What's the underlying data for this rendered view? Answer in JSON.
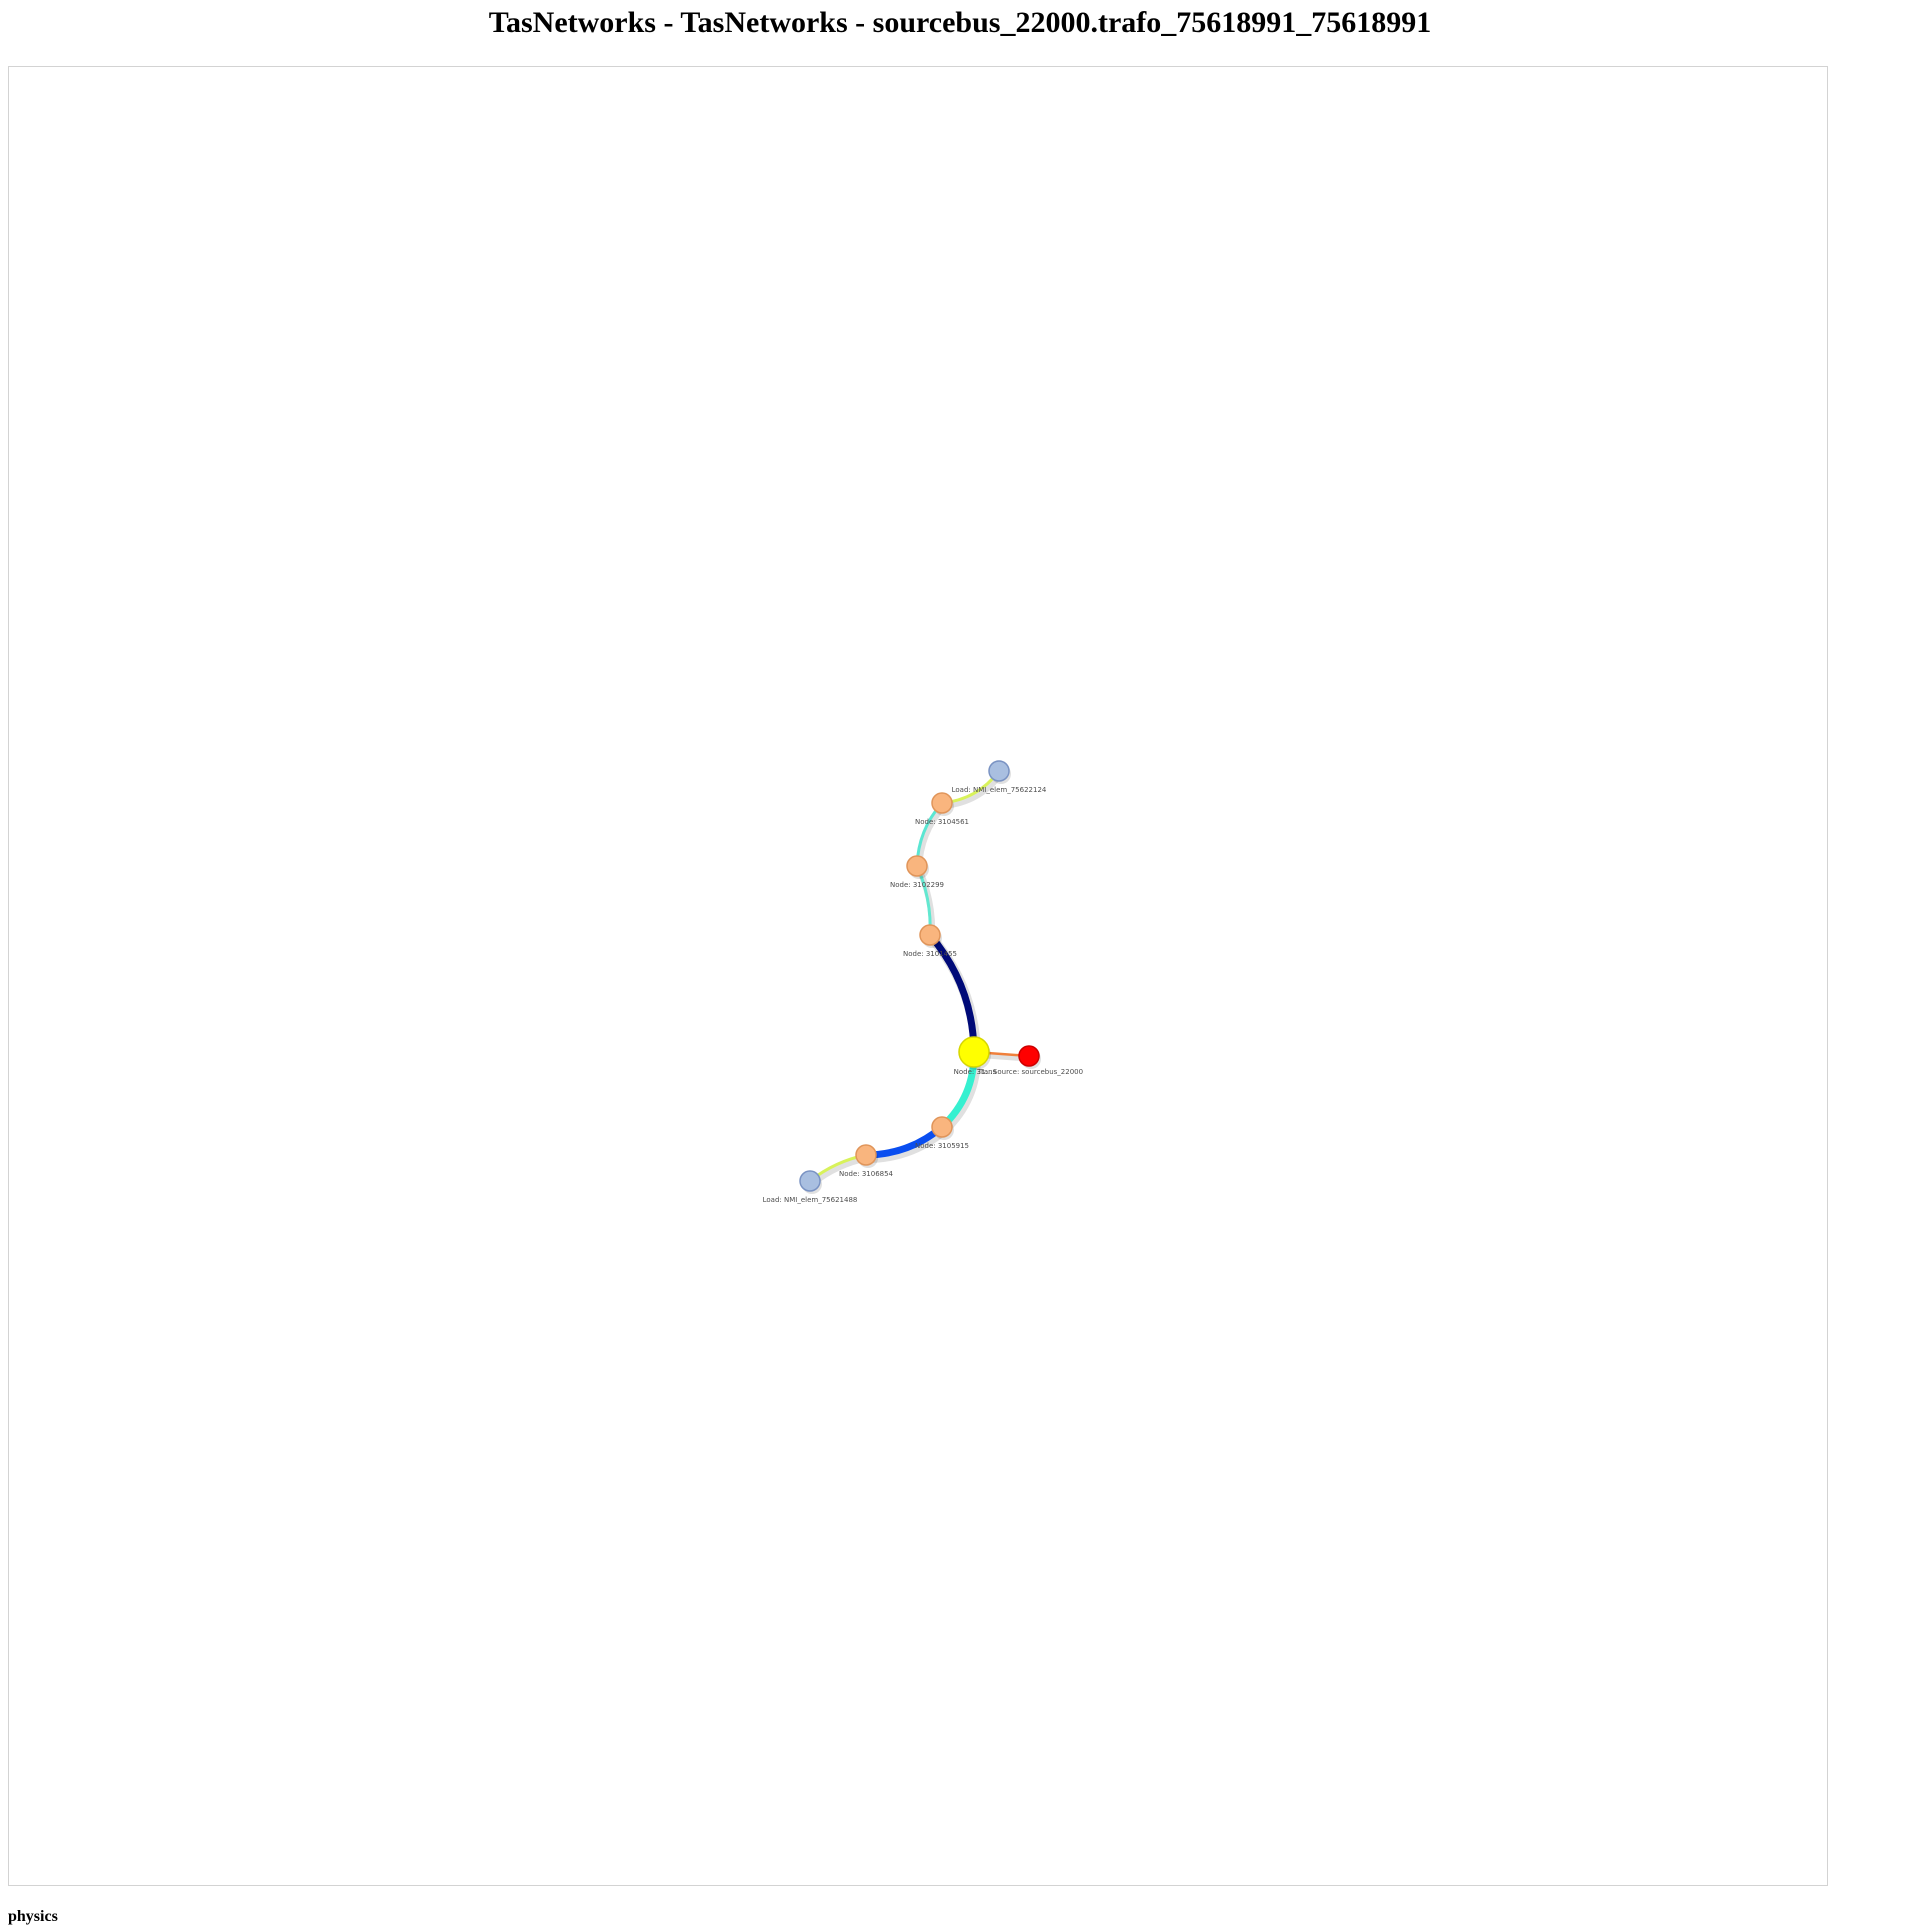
{
  "title": "TasNetworks - TasNetworks - sourcebus_22000.trafo_75618991_75618991",
  "footer": {
    "physics_label": "physics"
  },
  "network": {
    "nodes": [
      {
        "id": "load_75622124",
        "label": "Load: NMI_elem_75622124",
        "kind": "load",
        "color": "#a9bfe0",
        "border": "#7a93c3"
      },
      {
        "id": "n3104561",
        "label": "Node: 3104561",
        "kind": "node",
        "color": "#f9b57e",
        "border": "#e0955a"
      },
      {
        "id": "n3102299",
        "label": "Node: 3102299",
        "kind": "node",
        "color": "#f9b57e",
        "border": "#e0955a"
      },
      {
        "id": "n3101455",
        "label": "Node: 3101455",
        "kind": "node",
        "color": "#f9b57e",
        "border": "#e0955a"
      },
      {
        "id": "n31_hub",
        "label": "Node: 31…",
        "kind": "transformer",
        "color": "#ffff00",
        "border": "#d6d600"
      },
      {
        "id": "trans",
        "label": "Trans",
        "kind": "transformer_tag",
        "color": "#ffff00",
        "border": "#d6d600"
      },
      {
        "id": "source_22000",
        "label": "Source: sourcebus_22000",
        "kind": "source",
        "color": "#ff0000",
        "border": "#cc0000"
      },
      {
        "id": "n3105915",
        "label": "Node: 3105915",
        "kind": "node",
        "color": "#f9b57e",
        "border": "#e0955a"
      },
      {
        "id": "n3106854",
        "label": "Node: 3106854",
        "kind": "node",
        "color": "#f9b57e",
        "border": "#e0955a"
      },
      {
        "id": "load_75621488",
        "label": "Load: NMI_elem_75621488",
        "kind": "load",
        "color": "#a9bfe0",
        "border": "#7a93c3"
      }
    ],
    "edges": [
      {
        "from": "n3104561",
        "to": "load_75622124",
        "color": "#d8f25a"
      },
      {
        "from": "n3102299",
        "to": "n3104561",
        "color": "#5ae6d2"
      },
      {
        "from": "n3101455",
        "to": "n3102299",
        "color": "#62e8d0"
      },
      {
        "from": "n31_hub",
        "to": "n3101455",
        "color": "#000a78"
      },
      {
        "from": "n31_hub",
        "to": "source_22000",
        "color": "#f0803c"
      },
      {
        "from": "n31_hub",
        "to": "n3105915",
        "color": "#36f0d0"
      },
      {
        "from": "n3105915",
        "to": "n3106854",
        "color": "#0a4ef0"
      },
      {
        "from": "n3106854",
        "to": "load_75621488",
        "color": "#d8f25a"
      }
    ]
  }
}
